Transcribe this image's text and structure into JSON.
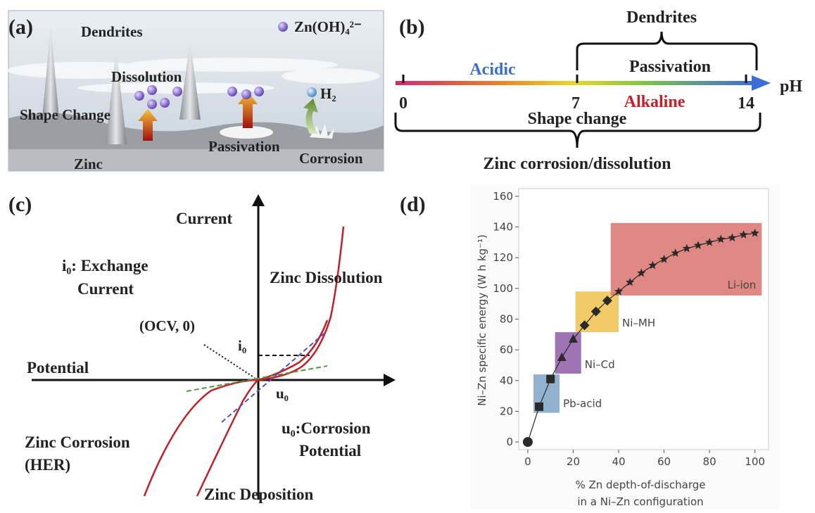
{
  "panel_a": {
    "label": "(a)",
    "dendrites": "Dendrites",
    "ion": "Zn(OH)₄²⁻",
    "dissolution": "Dissolution",
    "shape_change": "Shape Change",
    "h2": "H₂",
    "passivation": "Passivation",
    "zinc": "Zinc",
    "corrosion": "Corrosion"
  },
  "panel_b": {
    "label": "(b)",
    "dendrites": "Dendrites",
    "passivation": "Passivation",
    "acidic": "Acidic",
    "alkaline": "Alkaline",
    "axis": "pH",
    "ticks": [
      "0",
      "7",
      "14"
    ],
    "shape_change": "Shape change",
    "corrosion": "Zinc corrosion/dissolution"
  },
  "panel_c": {
    "label": "(c)",
    "y_axis": "Current",
    "x_axis": "Potential",
    "exchange": [
      "i₀: Exchange",
      "Current"
    ],
    "dissolution": "Zinc Dissolution",
    "ocv": "(OCV, 0)",
    "i0": "i₀",
    "u0": "u₀",
    "corrosion_potential": [
      "u₀:Corrosion",
      "Potential"
    ],
    "her": [
      "Zinc Corrosion",
      "(HER)"
    ],
    "deposition": "Zinc Deposition"
  },
  "chart_data": {
    "type": "line",
    "label": "(d)",
    "ylabel": "Ni–Zn specific energy (W h kg⁻¹)",
    "xlabel": [
      "% Zn depth-of-discharge",
      "in a Ni–Zn configuration"
    ],
    "x": [
      0,
      5,
      10,
      15,
      20,
      25,
      30,
      35,
      40,
      45,
      50,
      55,
      60,
      65,
      70,
      75,
      80,
      85,
      90,
      95,
      100
    ],
    "values": [
      0,
      23,
      41,
      55,
      67,
      76,
      85,
      92,
      98,
      104,
      110,
      115,
      119,
      123,
      126,
      128,
      130,
      132,
      133,
      135,
      136
    ],
    "markers": [
      "circle",
      "square",
      "square",
      "triangle",
      "triangle",
      "diamond",
      "diamond",
      "diamond",
      "star",
      "star",
      "star",
      "star",
      "star",
      "star",
      "star",
      "star",
      "star",
      "star",
      "star",
      "star",
      "star"
    ],
    "color": "#2a2a2a",
    "regions": [
      {
        "name": "Pb-acid",
        "color": "#7ea6c8",
        "label_color": "#4d7fb0",
        "x_range": [
          2.5,
          14
        ],
        "y_range": [
          19,
          44
        ]
      },
      {
        "name": "Ni–Cd",
        "color": "#8e5ca8",
        "label_color": "#7d4c9c",
        "x_range": [
          12,
          23.5
        ],
        "y_range": [
          44.5,
          71.5
        ]
      },
      {
        "name": "Ni–MH",
        "color": "#f0c24e",
        "label_color": "#d9a531",
        "x_range": [
          21,
          40
        ],
        "y_range": [
          71.5,
          98
        ]
      },
      {
        "name": "Li-ion",
        "color": "#d9736f",
        "label_color": "#7a2b2b",
        "x_range": [
          36.5,
          103
        ],
        "y_range": [
          95.4,
          142.6
        ]
      }
    ],
    "xlim": [
      -4,
      106
    ],
    "ylim": [
      -5,
      165
    ],
    "xticks": [
      0,
      20,
      40,
      60,
      80,
      100
    ],
    "yticks": [
      0,
      20,
      40,
      60,
      80,
      100,
      120,
      140,
      160
    ]
  }
}
